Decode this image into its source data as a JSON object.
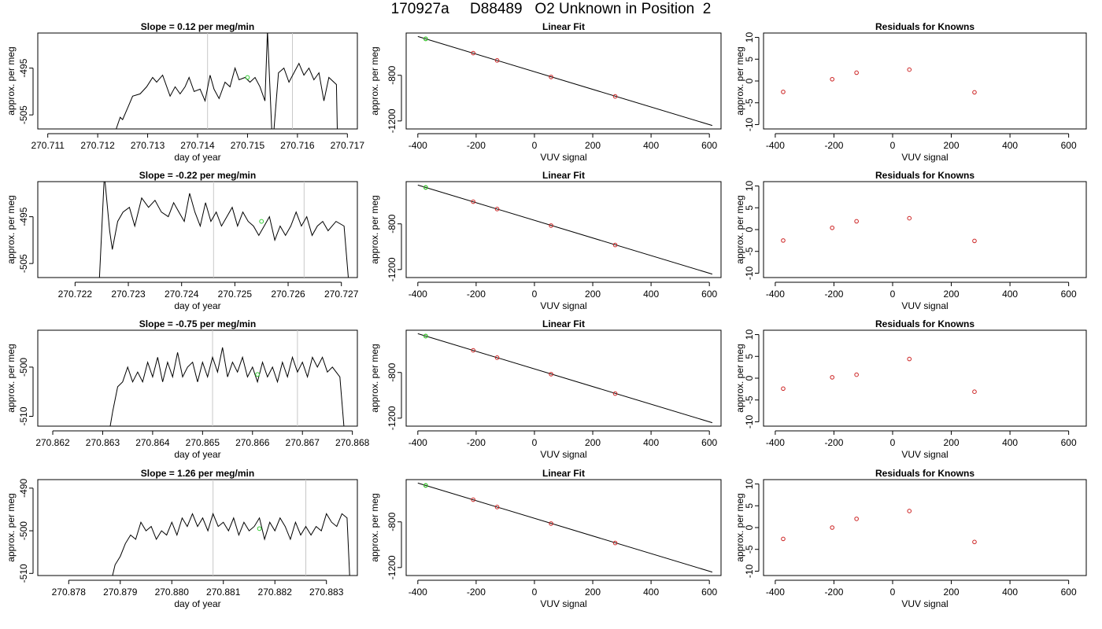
{
  "title": "170927a     D88489   O2 Unknown in Position  2",
  "colors": {
    "trace": "#000000",
    "marker_green": "#33cc33",
    "marker_red": "#cc2222",
    "vline": "#c8c8c8",
    "fitline": "#000000"
  },
  "chart_data": [
    {
      "row": 0,
      "type": "line",
      "title": "Slope =  0.12  per meg/min",
      "xlabel": "day of year",
      "ylabel": "approx. per meg",
      "xlim": [
        270.7108,
        270.7172
      ],
      "ylim": [
        -508,
        -487.5
      ],
      "xticks": [
        "270.711",
        "270.712",
        "270.713",
        "270.714",
        "270.715",
        "270.716",
        "270.717"
      ],
      "yticks": [
        "-495",
        "-505"
      ],
      "ytick_values": [
        -495,
        -505
      ],
      "vlines": [
        270.7142,
        270.7159
      ],
      "marker": {
        "x": 270.715,
        "y": -497
      },
      "trace": [
        [
          270.71237,
          -508
        ],
        [
          270.71245,
          -505.5
        ],
        [
          270.7125,
          -506
        ],
        [
          270.71262,
          -503
        ],
        [
          270.7127,
          -501
        ],
        [
          270.71285,
          -500.5
        ],
        [
          270.71298,
          -499
        ],
        [
          270.7131,
          -497
        ],
        [
          270.71318,
          -498
        ],
        [
          270.7133,
          -496.5
        ],
        [
          270.71345,
          -501
        ],
        [
          270.71355,
          -499
        ],
        [
          270.71365,
          -500.5
        ],
        [
          270.71375,
          -499
        ],
        [
          270.71383,
          -497
        ],
        [
          270.71393,
          -500
        ],
        [
          270.71405,
          -499.5
        ],
        [
          270.71415,
          -502
        ],
        [
          270.71425,
          -496.5
        ],
        [
          270.71433,
          -499.5
        ],
        [
          270.71443,
          -501.5
        ],
        [
          270.71455,
          -498
        ],
        [
          270.71465,
          -499
        ],
        [
          270.71475,
          -495
        ],
        [
          270.71483,
          -497.5
        ],
        [
          270.71495,
          -497
        ],
        [
          270.71505,
          -498
        ],
        [
          270.71515,
          -497
        ],
        [
          270.71525,
          -499
        ],
        [
          270.71535,
          -502
        ],
        [
          270.7154,
          -487
        ],
        [
          270.7155,
          -512
        ],
        [
          270.71562,
          -496
        ],
        [
          270.71573,
          -495
        ],
        [
          270.71583,
          -498
        ],
        [
          270.71593,
          -496
        ],
        [
          270.71603,
          -494
        ],
        [
          270.71613,
          -496.5
        ],
        [
          270.71623,
          -495
        ],
        [
          270.71633,
          -497.5
        ],
        [
          270.71643,
          -496
        ],
        [
          270.71653,
          -502
        ],
        [
          270.71663,
          -497
        ],
        [
          270.71678,
          -498.5
        ],
        [
          270.7168,
          -509
        ]
      ]
    },
    {
      "row": 1,
      "type": "line",
      "title": "Slope =  -0.22  per meg/min",
      "xlabel": "day of year",
      "ylabel": "approx. per meg",
      "xlim": [
        270.7213,
        270.7273
      ],
      "ylim": [
        -508,
        -487.5
      ],
      "xticks": [
        "270.722",
        "270.723",
        "270.724",
        "270.725",
        "270.726",
        "270.727"
      ],
      "yticks": [
        "-495",
        "-505"
      ],
      "ytick_values": [
        -495,
        -505
      ],
      "vlines": [
        270.7246,
        270.7263
      ],
      "marker": {
        "x": 270.7255,
        "y": -496
      },
      "trace": [
        [
          270.72245,
          -510
        ],
        [
          270.72255,
          -486
        ],
        [
          270.72265,
          -498
        ],
        [
          270.7227,
          -502
        ],
        [
          270.7228,
          -496
        ],
        [
          270.7229,
          -494
        ],
        [
          270.72302,
          -493
        ],
        [
          270.72312,
          -497
        ],
        [
          270.72325,
          -491
        ],
        [
          270.72338,
          -493
        ],
        [
          270.7235,
          -491.5
        ],
        [
          270.72362,
          -494
        ],
        [
          270.72375,
          -495
        ],
        [
          270.72385,
          -492
        ],
        [
          270.72395,
          -494
        ],
        [
          270.72405,
          -496
        ],
        [
          270.72415,
          -490
        ],
        [
          270.72425,
          -494
        ],
        [
          270.72435,
          -497
        ],
        [
          270.72445,
          -492
        ],
        [
          270.72455,
          -496
        ],
        [
          270.72465,
          -494
        ],
        [
          270.72475,
          -497
        ],
        [
          270.72485,
          -495
        ],
        [
          270.72495,
          -493
        ],
        [
          270.72505,
          -497
        ],
        [
          270.72515,
          -494
        ],
        [
          270.72525,
          -496
        ],
        [
          270.72535,
          -497
        ],
        [
          270.72545,
          -499
        ],
        [
          270.72555,
          -497
        ],
        [
          270.72565,
          -495
        ],
        [
          270.72575,
          -500
        ],
        [
          270.72585,
          -497
        ],
        [
          270.72595,
          -499
        ],
        [
          270.72605,
          -497
        ],
        [
          270.72615,
          -494
        ],
        [
          270.72625,
          -497
        ],
        [
          270.72635,
          -495
        ],
        [
          270.72645,
          -499
        ],
        [
          270.72655,
          -497
        ],
        [
          270.72665,
          -496
        ],
        [
          270.72675,
          -498
        ],
        [
          270.7269,
          -496
        ],
        [
          270.72705,
          -497
        ],
        [
          270.72713,
          -508
        ]
      ]
    },
    {
      "row": 2,
      "type": "line",
      "title": "Slope =  -0.75  per meg/min",
      "xlabel": "day of year",
      "ylabel": "approx. per meg",
      "xlim": [
        270.8617,
        270.8681
      ],
      "ylim": [
        -512,
        -492.5
      ],
      "xticks": [
        "270.862",
        "270.863",
        "270.864",
        "270.865",
        "270.866",
        "270.867",
        "270.868"
      ],
      "yticks": [
        "-500",
        "-510"
      ],
      "ytick_values": [
        -500,
        -510
      ],
      "vlines": [
        270.8652,
        270.8669
      ],
      "marker": {
        "x": 270.8661,
        "y": -501.5
      },
      "trace": [
        [
          270.86315,
          -512
        ],
        [
          270.8632,
          -509
        ],
        [
          270.8633,
          -504
        ],
        [
          270.8634,
          -503
        ],
        [
          270.8635,
          -500
        ],
        [
          270.8636,
          -503
        ],
        [
          270.8637,
          -501
        ],
        [
          270.8638,
          -503
        ],
        [
          270.8639,
          -499
        ],
        [
          270.864,
          -502
        ],
        [
          270.8641,
          -498
        ],
        [
          270.8642,
          -503
        ],
        [
          270.8643,
          -499
        ],
        [
          270.8644,
          -502
        ],
        [
          270.8645,
          -497
        ],
        [
          270.8646,
          -502
        ],
        [
          270.8647,
          -500
        ],
        [
          270.8648,
          -499
        ],
        [
          270.8649,
          -503
        ],
        [
          270.865,
          -499
        ],
        [
          270.8651,
          -502
        ],
        [
          270.8652,
          -498
        ],
        [
          270.8653,
          -501
        ],
        [
          270.8654,
          -496
        ],
        [
          270.8655,
          -502
        ],
        [
          270.8656,
          -499
        ],
        [
          270.8657,
          -501
        ],
        [
          270.8658,
          -498
        ],
        [
          270.8659,
          -502
        ],
        [
          270.866,
          -500
        ],
        [
          270.8661,
          -503
        ],
        [
          270.8662,
          -499
        ],
        [
          270.8663,
          -502
        ],
        [
          270.8664,
          -500
        ],
        [
          270.8665,
          -503
        ],
        [
          270.8666,
          -499
        ],
        [
          270.8667,
          -502
        ],
        [
          270.8668,
          -498
        ],
        [
          270.8669,
          -501
        ],
        [
          270.867,
          -499
        ],
        [
          270.8671,
          -502
        ],
        [
          270.8672,
          -498
        ],
        [
          270.8673,
          -500
        ],
        [
          270.8674,
          -498
        ],
        [
          270.8675,
          -501
        ],
        [
          270.8676,
          -500
        ],
        [
          270.86775,
          -502
        ],
        [
          270.86783,
          -512
        ]
      ]
    },
    {
      "row": 3,
      "type": "line",
      "title": "Slope =  1.26  per meg/min",
      "xlabel": "day of year",
      "ylabel": "approx. per meg",
      "xlim": [
        270.8774,
        270.8836
      ],
      "ylim": [
        -510.5,
        -488
      ],
      "xticks": [
        "270.878",
        "270.879",
        "270.880",
        "270.881",
        "270.882",
        "270.883"
      ],
      "yticks": [
        "-490",
        "-500",
        "-510"
      ],
      "ytick_values": [
        -490,
        -500,
        -510
      ],
      "vlines": [
        270.8808,
        270.8826
      ],
      "marker": {
        "x": 270.8817,
        "y": -499.5
      },
      "trace": [
        [
          270.87885,
          -510.5
        ],
        [
          270.8789,
          -508
        ],
        [
          270.879,
          -506
        ],
        [
          270.8791,
          -503
        ],
        [
          270.8792,
          -501
        ],
        [
          270.8793,
          -502
        ],
        [
          270.8794,
          -498
        ],
        [
          270.8795,
          -500
        ],
        [
          270.8796,
          -499
        ],
        [
          270.8797,
          -502
        ],
        [
          270.8798,
          -500
        ],
        [
          270.8799,
          -501
        ],
        [
          270.88,
          -498
        ],
        [
          270.8801,
          -501
        ],
        [
          270.8802,
          -497
        ],
        [
          270.8803,
          -499
        ],
        [
          270.8804,
          -496
        ],
        [
          270.8805,
          -499
        ],
        [
          270.8806,
          -497
        ],
        [
          270.8807,
          -500
        ],
        [
          270.8808,
          -496
        ],
        [
          270.8809,
          -499
        ],
        [
          270.881,
          -498
        ],
        [
          270.8811,
          -500
        ],
        [
          270.8812,
          -497
        ],
        [
          270.8813,
          -501
        ],
        [
          270.8814,
          -498
        ],
        [
          270.8815,
          -500
        ],
        [
          270.8816,
          -499
        ],
        [
          270.8817,
          -497
        ],
        [
          270.8818,
          -502
        ],
        [
          270.8819,
          -498
        ],
        [
          270.882,
          -500
        ],
        [
          270.8821,
          -497
        ],
        [
          270.8822,
          -499
        ],
        [
          270.8823,
          -502
        ],
        [
          270.8824,
          -498
        ],
        [
          270.8825,
          -501
        ],
        [
          270.8826,
          -499
        ],
        [
          270.8827,
          -501
        ],
        [
          270.8828,
          -499
        ],
        [
          270.8829,
          -500
        ],
        [
          270.883,
          -496
        ],
        [
          270.8831,
          -498
        ],
        [
          270.8832,
          -499
        ],
        [
          270.8833,
          -496
        ],
        [
          270.8834,
          -497
        ],
        [
          270.88345,
          -510.5
        ]
      ]
    },
    {
      "type": "scatter",
      "title": "Linear Fit",
      "xlabel": "VUV signal",
      "ylabel": "approx. per meg",
      "xlim": [
        -440,
        640
      ],
      "ylim": [
        -1270,
        -430
      ],
      "xticks": [
        "-400",
        "-200",
        "0",
        "200",
        "400",
        "600"
      ],
      "xtick_values": [
        -400,
        -200,
        0,
        200,
        400,
        600
      ],
      "yticks": [
        "-800",
        "-1200"
      ],
      "ytick_values": [
        -800,
        -1200
      ],
      "fit_line": [
        [
          -400,
          -460
        ],
        [
          610,
          -1240
        ]
      ],
      "green_point": [
        -373,
        -481
      ],
      "red_points": [
        [
          -373,
          -481
        ],
        [
          -210,
          -606
        ],
        [
          -128,
          -670
        ],
        [
          57,
          -815
        ],
        [
          277,
          -985
        ]
      ]
    },
    {
      "type": "scatter",
      "title": "Residuals for Knowns",
      "xlabel": "VUV signal",
      "ylabel": "approx. per meg",
      "xlim": [
        -440,
        660
      ],
      "ylim": [
        -11,
        11
      ],
      "xticks": [
        "-400",
        "-200",
        "0",
        "200",
        "400",
        "600"
      ],
      "xtick_values": [
        -400,
        -200,
        0,
        200,
        400,
        600
      ],
      "yticks": [
        "10",
        "5",
        "0",
        "-5",
        "-10"
      ],
      "ytick_values": [
        10,
        5,
        0,
        -5,
        -10
      ],
      "residual_sets": [
        [
          [
            -373,
            -2.5
          ],
          [
            -206,
            0.4
          ],
          [
            -123,
            1.9
          ],
          [
            57,
            2.6
          ],
          [
            279,
            -2.6
          ]
        ],
        [
          [
            -373,
            -2.5
          ],
          [
            -206,
            0.4
          ],
          [
            -123,
            1.9
          ],
          [
            57,
            2.6
          ],
          [
            279,
            -2.6
          ]
        ],
        [
          [
            -373,
            -2.4
          ],
          [
            -206,
            0.2
          ],
          [
            -123,
            0.8
          ],
          [
            57,
            4.4
          ],
          [
            279,
            -3.1
          ]
        ],
        [
          [
            -373,
            -2.6
          ],
          [
            -206,
            0.0
          ],
          [
            -123,
            2.0
          ],
          [
            57,
            3.8
          ],
          [
            279,
            -3.3
          ]
        ]
      ]
    }
  ]
}
